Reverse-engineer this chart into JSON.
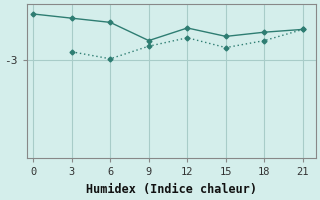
{
  "xlabel": "Humidex (Indice chaleur)",
  "background_color": "#d4eeeb",
  "grid_color": "#a8ccc8",
  "line_color": "#2e7d72",
  "x_ticks": [
    0,
    3,
    6,
    9,
    12,
    15,
    18,
    21
  ],
  "xlim": [
    -0.5,
    22
  ],
  "ylim": [
    -6.5,
    -1.0
  ],
  "yticks": [
    -3
  ],
  "line1_x": [
    0,
    3,
    6,
    9,
    12,
    15,
    18,
    21
  ],
  "line1_y": [
    -1.35,
    -1.5,
    -1.65,
    -2.3,
    -1.85,
    -2.15,
    -2.0,
    -1.9
  ],
  "line2_x": [
    3,
    6,
    9,
    12,
    15,
    18,
    21
  ],
  "line2_y": [
    -2.7,
    -2.95,
    -2.5,
    -2.2,
    -2.55,
    -2.3,
    -1.9
  ]
}
